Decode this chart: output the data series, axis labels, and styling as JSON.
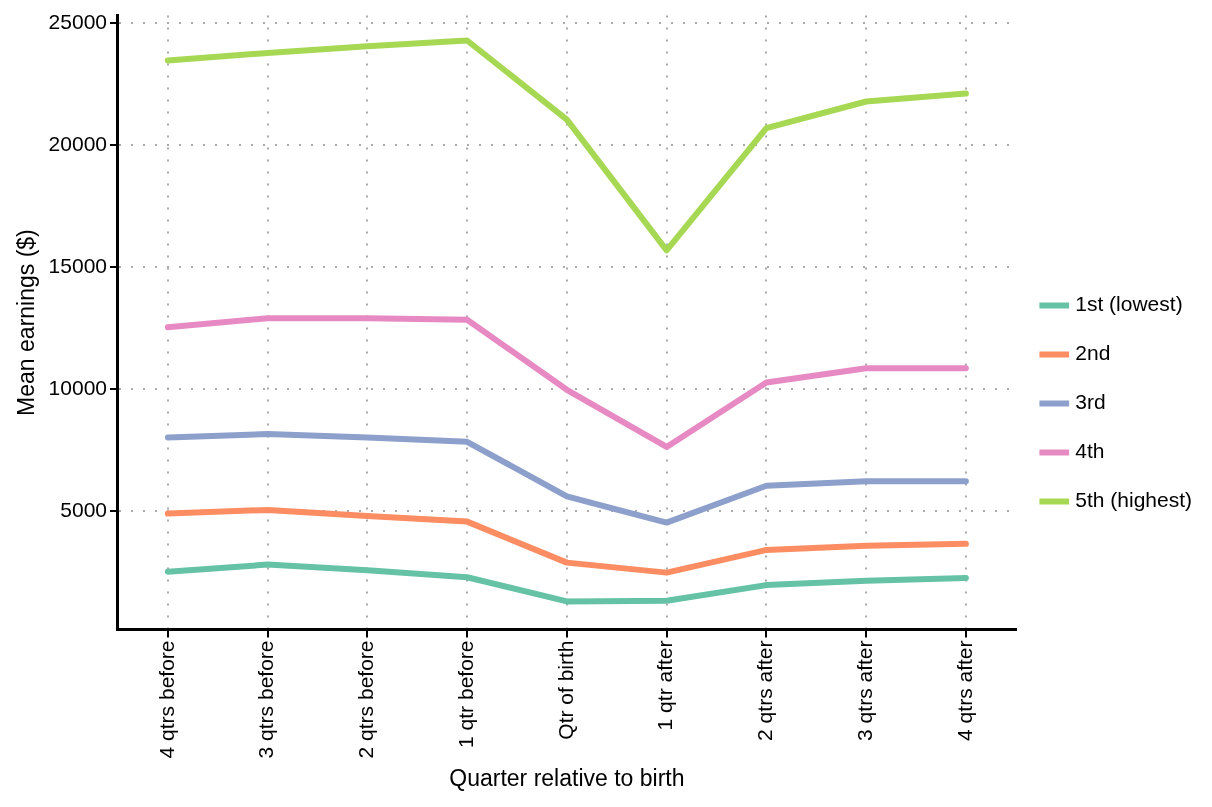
{
  "chart_data": {
    "type": "line",
    "xlabel": "Quarter relative to birth",
    "ylabel": "Mean earnings ($)",
    "categories": [
      "4 qtrs before",
      "3 qtrs before",
      "2 qtrs before",
      "1 qtr before",
      "Qtr of birth",
      "1 qtr after",
      "2 qtrs after",
      "3 qtrs after",
      "4 qtrs after"
    ],
    "series": [
      {
        "name": "1st (lowest)",
        "color": "#66c2a5",
        "values": [
          2520,
          2810,
          2580,
          2290,
          1300,
          1330,
          1970,
          2150,
          2260
        ]
      },
      {
        "name": "2nd",
        "color": "#fc8d62",
        "values": [
          4900,
          5050,
          4800,
          4570,
          2890,
          2480,
          3410,
          3580,
          3660
        ]
      },
      {
        "name": "3rd",
        "color": "#8da0cb",
        "values": [
          8020,
          8160,
          8020,
          7840,
          5600,
          4530,
          6040,
          6220,
          6220
        ]
      },
      {
        "name": "4th",
        "color": "#e78ac3",
        "values": [
          12530,
          12900,
          12900,
          12840,
          9970,
          7630,
          10270,
          10850,
          10850
        ]
      },
      {
        "name": "5th (highest)",
        "color": "#a6d854",
        "values": [
          23460,
          23770,
          24040,
          24280,
          21040,
          15680,
          20690,
          21780,
          22110
        ]
      }
    ],
    "ylim": [
      150,
      25300
    ],
    "yticks": [
      5000,
      10000,
      15000,
      20000,
      25000
    ],
    "grid": true,
    "legend": "right",
    "marker": "none",
    "line_style": "solid"
  }
}
